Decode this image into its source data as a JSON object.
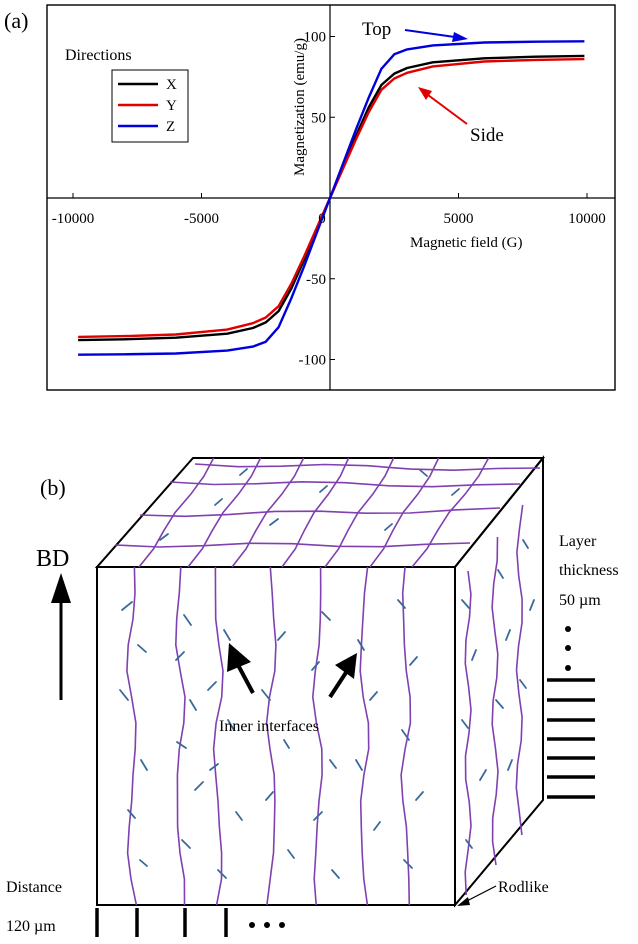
{
  "panel_a": {
    "label": "(a)",
    "legend_title": "Directions",
    "annotation_top": "Top",
    "annotation_side": "Side"
  },
  "panel_b": {
    "label": "(b)",
    "bd_label": "BD",
    "layer_label_1": "Layer",
    "layer_label_2": "thickness",
    "layer_value": "50 µm",
    "inner_label": "Inner interfaces",
    "rodlike_label": "Rodlike",
    "distance_label": "Distance",
    "distance_value": "120 µm",
    "line_color": "#8040b0",
    "crack_color": "#3a6a9a"
  },
  "chart_data": {
    "type": "line",
    "title": "",
    "xlabel": "Magnetic field (G)",
    "ylabel": "Magnetization (emu/g)",
    "xlim": [
      -11000,
      10500
    ],
    "ylim": [
      -120,
      120
    ],
    "xticks": [
      -10000,
      -5000,
      0,
      5000,
      10000
    ],
    "yticks": [
      -100,
      -50,
      50,
      100
    ],
    "xtick_labels": [
      "-10000",
      "-5000",
      "0",
      "5000",
      "10000"
    ],
    "ytick_labels": [
      "-100",
      "-50",
      "50",
      "100"
    ],
    "legend_position": "top-left",
    "x": [
      -9800,
      -8000,
      -6000,
      -4000,
      -3000,
      -2500,
      -2000,
      -1500,
      -1000,
      -500,
      0,
      500,
      1000,
      1500,
      2000,
      2500,
      3000,
      4000,
      6000,
      8000,
      9900
    ],
    "series": [
      {
        "name": "X",
        "color": "#000000",
        "values": [
          -88,
          -87.5,
          -86.5,
          -84,
          -80.5,
          -77,
          -70,
          -56,
          -38,
          -19,
          0,
          19,
          38,
          56,
          70,
          77,
          80.5,
          84,
          86.5,
          87.5,
          88
        ]
      },
      {
        "name": "Y",
        "color": "#e00000",
        "values": [
          -86,
          -85.5,
          -84.5,
          -81.5,
          -77.5,
          -74,
          -67,
          -53,
          -36,
          -18,
          0,
          18,
          36,
          53,
          67,
          74,
          77.5,
          81.5,
          84.5,
          85.5,
          86
        ]
      },
      {
        "name": "Z",
        "color": "#0000dd",
        "values": [
          -97,
          -96.8,
          -96.3,
          -94.5,
          -92,
          -89,
          -80,
          -62,
          -42,
          -21,
          0,
          21,
          42,
          62,
          80,
          89,
          92,
          94.5,
          96.3,
          96.8,
          97
        ]
      }
    ]
  }
}
